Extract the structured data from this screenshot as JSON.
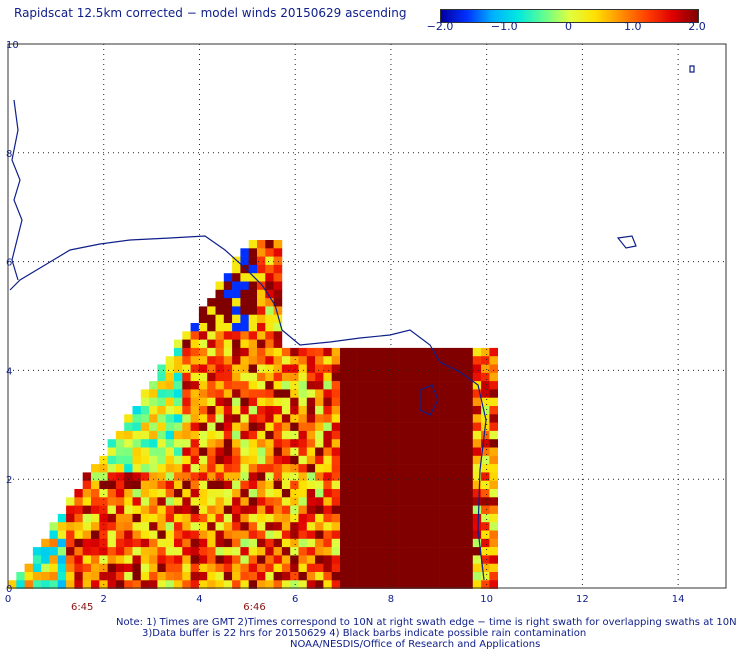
{
  "header": {
    "title": "Rapidscat 12.5km corrected − model winds 20150629 ascending"
  },
  "colorbar": {
    "min": -2.0,
    "max": 2.0,
    "labels": [
      "−2.0",
      "−1.0",
      "0",
      "1.0",
      "2.0"
    ],
    "label_values": [
      -2.0,
      -1.0,
      0,
      1.0,
      2.0
    ],
    "colors": [
      "#0000a0",
      "#0030ff",
      "#00b0ff",
      "#00e8e0",
      "#60ff90",
      "#e0ff40",
      "#ffe000",
      "#ff9000",
      "#ff4000",
      "#e00000",
      "#800000"
    ]
  },
  "map": {
    "x_ticks": [
      "0",
      "2",
      "4",
      "6",
      "8",
      "10",
      "12",
      "14"
    ],
    "x_tick_values": [
      0,
      2,
      4,
      6,
      8,
      10,
      12,
      14
    ],
    "y_ticks": [
      "0",
      "2",
      "4",
      "6",
      "8",
      "10"
    ],
    "y_tick_values": [
      0,
      2,
      4,
      6,
      8,
      10
    ],
    "x_range": [
      0,
      15
    ],
    "y_range": [
      0,
      10
    ],
    "grid": true,
    "time_labels": [
      {
        "text": "6:45",
        "x": 1.55
      },
      {
        "text": "6:46",
        "x": 5.15
      }
    ],
    "time_label_color": "#8a1010",
    "coast_color": "#10208a"
  },
  "notes": {
    "line1": "Note: 1) Times are GMT 2)Times correspond to 10N at right swath edge − time is right swath for overlapping swaths at 10N",
    "line2": "3)Data buffer is 22 hrs for 20150629 4) Black barbs indicate possible rain contamination",
    "line3": "NOAA/NESDIS/Office of Research and Applications"
  }
}
